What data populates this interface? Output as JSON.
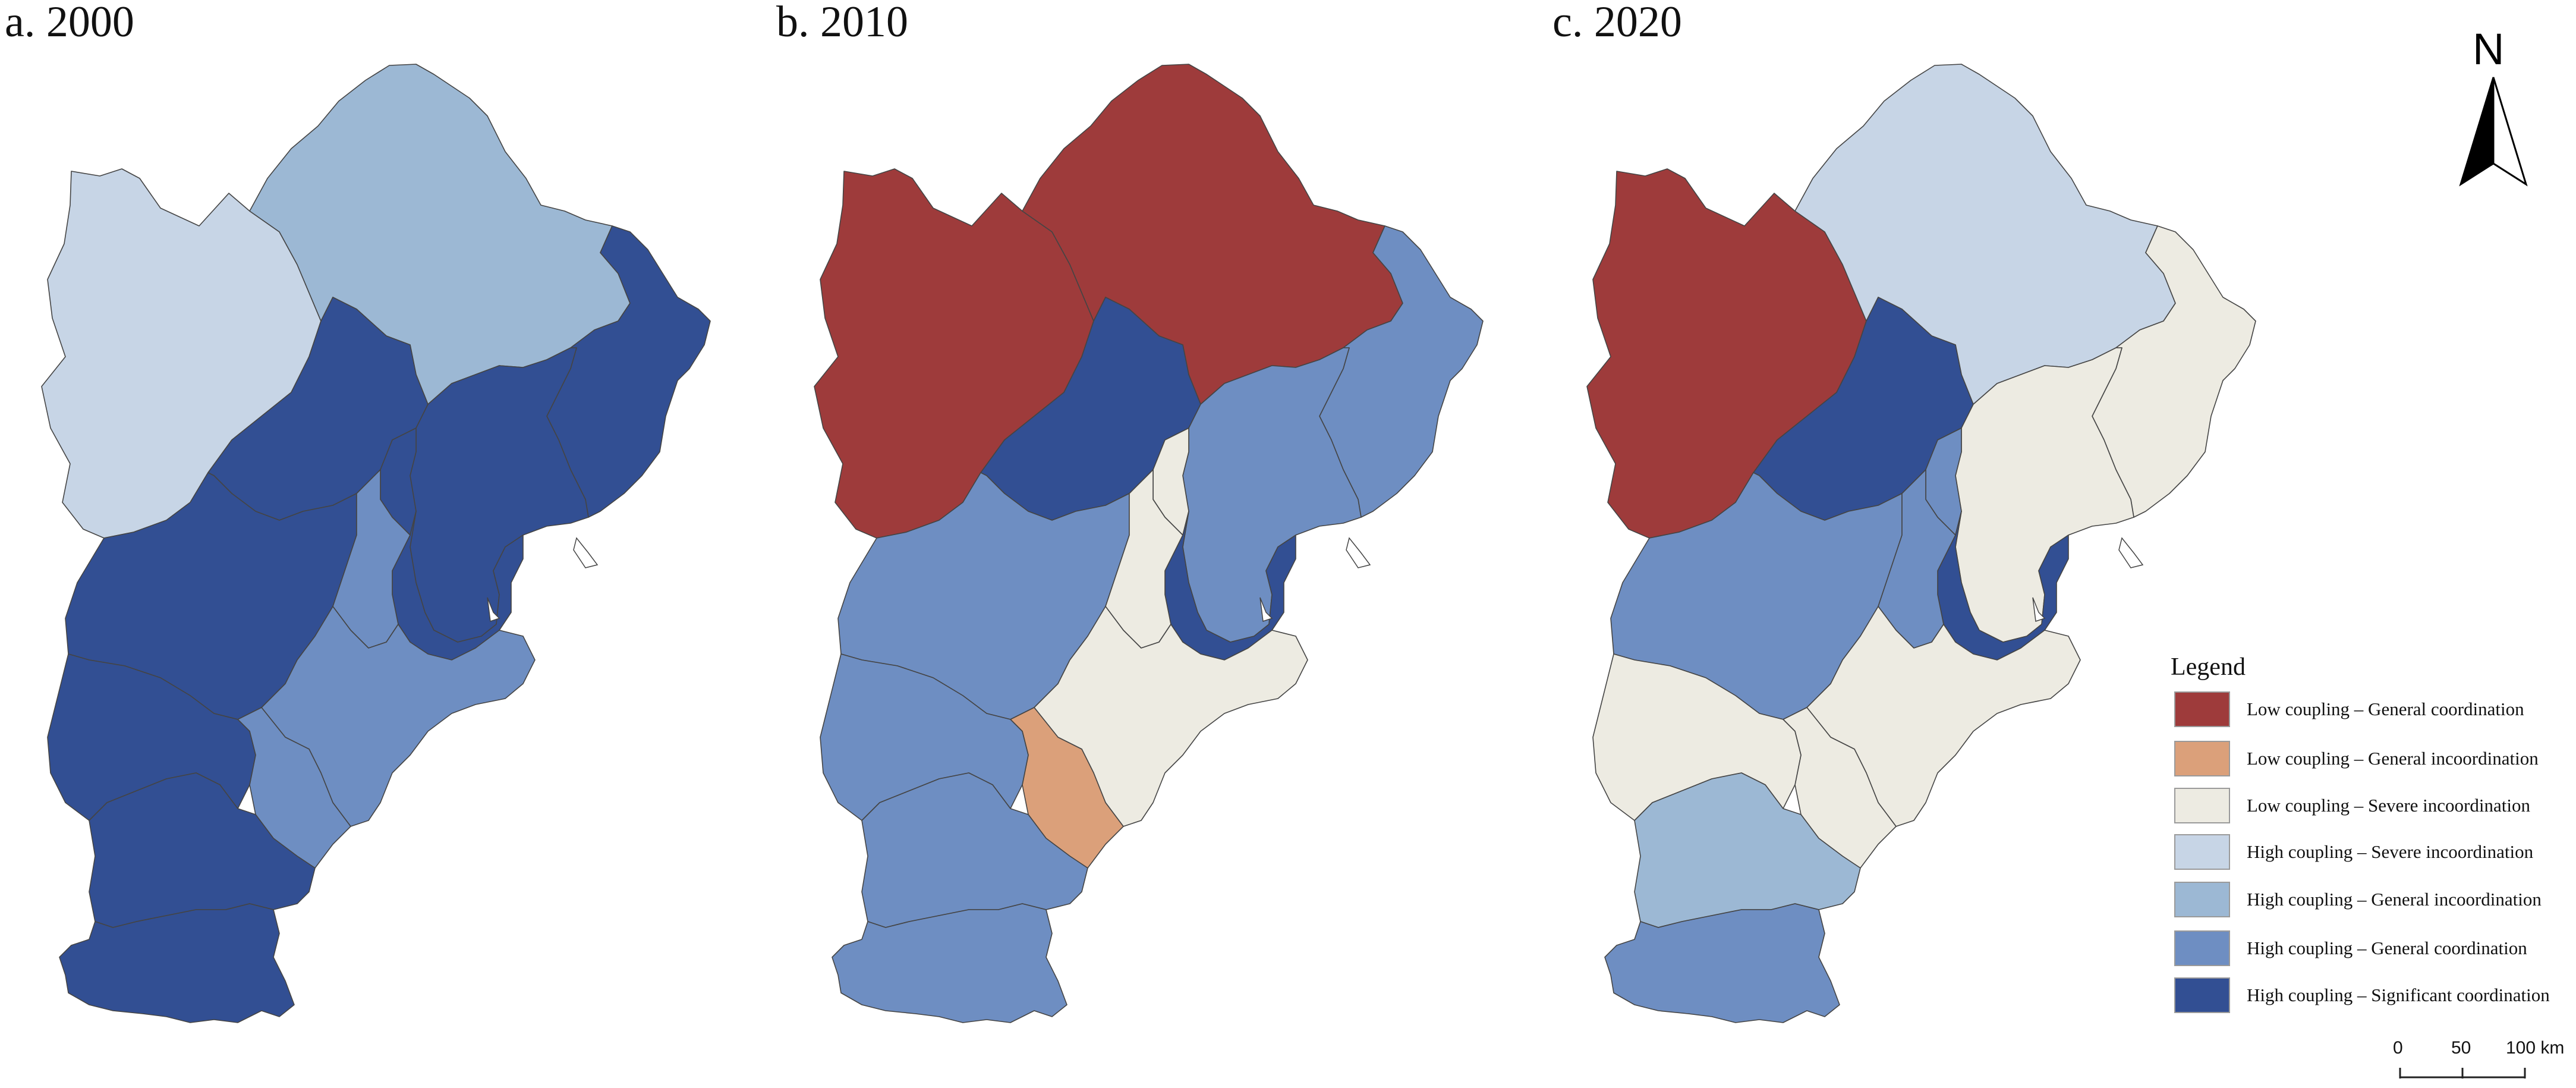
{
  "panels": [
    {
      "title": "a. 2000",
      "year": "2000"
    },
    {
      "title": "b. 2010",
      "year": "2010"
    },
    {
      "title": "c. 2020",
      "year": "2020"
    }
  ],
  "legend": {
    "title": "Legend",
    "items": [
      {
        "key": "lg",
        "label": "Low coupling – General coordination",
        "color": "#9e3b3b"
      },
      {
        "key": "li",
        "label": "Low coupling – General incoordination",
        "color": "#dba07a"
      },
      {
        "key": "ls",
        "label": "Low coupling – Severe incoordination",
        "color": "#edebe2"
      },
      {
        "key": "hs",
        "label": "High coupling – Severe incoordination",
        "color": "#c7d5e6"
      },
      {
        "key": "hi",
        "label": "High coupling – General incoordination",
        "color": "#9cb8d4"
      },
      {
        "key": "hg",
        "label": "High coupling – General coordination",
        "color": "#6e8ec2"
      },
      {
        "key": "hsig",
        "label": "High coupling – Significant coordination",
        "color": "#324f93"
      }
    ]
  },
  "region_classes": {
    "2000": {
      "zhangjiakou": "hs",
      "chengde": "hi",
      "beijing": "hsig",
      "qinhuangdao": "hsig",
      "tangshan": "hsig",
      "langfang_n": "hsig",
      "tianjin": "hsig",
      "baoding": "hsig",
      "langfang_s": "hg",
      "cangzhou": "hg",
      "hengshui": "hg",
      "shijiazhuang": "hsig",
      "xingtai": "hsig",
      "handan": "hsig"
    },
    "2010": {
      "zhangjiakou": "lg",
      "chengde": "lg",
      "beijing": "hsig",
      "qinhuangdao": "hg",
      "tangshan": "hg",
      "langfang_n": "ls",
      "tianjin": "hsig",
      "baoding": "hg",
      "langfang_s": "ls",
      "cangzhou": "ls",
      "hengshui": "li",
      "shijiazhuang": "hg",
      "xingtai": "hg",
      "handan": "hg"
    },
    "2020": {
      "zhangjiakou": "lg",
      "chengde": "hs",
      "beijing": "hsig",
      "qinhuangdao": "ls",
      "tangshan": "ls",
      "langfang_n": "hg",
      "tianjin": "hsig",
      "baoding": "hg",
      "langfang_s": "hg",
      "cangzhou": "ls",
      "hengshui": "ls",
      "shijiazhuang": "ls",
      "xingtai": "hi",
      "handan": "hg"
    }
  },
  "north_arrow": {
    "label": "N",
    "icon": "north-arrow-icon"
  },
  "scale_bar": {
    "ticks": [
      "0",
      "50",
      "100 km"
    ]
  }
}
